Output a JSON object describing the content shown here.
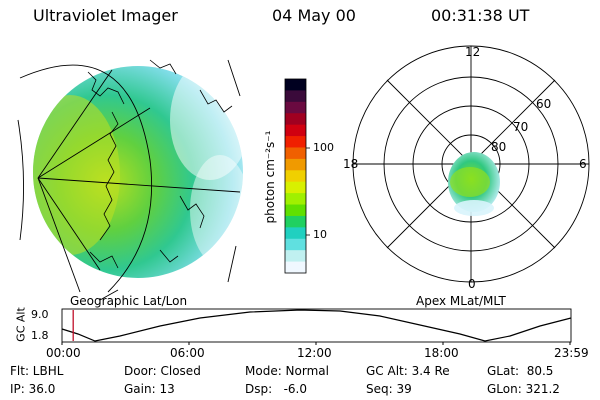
{
  "header": {
    "instrument": "Ultraviolet Imager",
    "date": "04 May 00",
    "time": "00:31:38 UT"
  },
  "left_panel": {
    "caption": "Geographic Lat/Lon"
  },
  "right_panel": {
    "caption": "Apex MLat/MLT",
    "mlt_labels": {
      "top": "12",
      "left": "18",
      "right": "6",
      "bottom": "0"
    },
    "lat_labels": [
      "60",
      "70",
      "80"
    ]
  },
  "colorbar": {
    "unit_label": "photon cm⁻²s⁻¹",
    "ticks": [
      "100",
      "10"
    ],
    "colors": [
      "#000020",
      "#3a0a3a",
      "#6a0a40",
      "#a00020",
      "#d00010",
      "#f02000",
      "#f06000",
      "#f09a00",
      "#f0d000",
      "#d8f000",
      "#a0f000",
      "#60e000",
      "#20d060",
      "#20d0c0",
      "#60e0e0",
      "#c0f0f0",
      "#f0f8ff"
    ]
  },
  "alt_plot": {
    "ylabel": "GC Alt",
    "y_ticks": [
      "9.0",
      "1.8"
    ],
    "x_ticks": [
      "00:00",
      "06:00",
      "12:00",
      "18:00",
      "23:59"
    ],
    "current_time_fraction": 0.022
  },
  "info": {
    "flt": "Flt: LBHL",
    "ip": "IP: 36.0",
    "door": "Door: Closed",
    "gain": "Gain: 13",
    "mode": "Mode: Normal",
    "dsp": "Dsp:   -6.0",
    "gcalt": "GC Alt: 3.4 Re",
    "seq": "Seq: 39",
    "glat": "GLat:  80.5",
    "glon": "GLon: 321.2"
  }
}
